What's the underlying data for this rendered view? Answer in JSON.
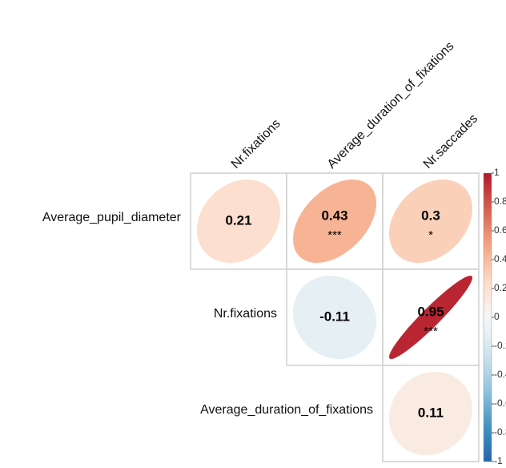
{
  "chart_data": {
    "type": "corrplot",
    "rows": [
      "Average_pupil_diameter",
      "Nr.fixations",
      "Average_duration_of_fixations"
    ],
    "columns": [
      "Nr.fixations",
      "Average_duration_of_fixations",
      "Nr.saccades"
    ],
    "values": [
      [
        0.21,
        0.43,
        0.3
      ],
      [
        null,
        -0.11,
        0.95
      ],
      [
        null,
        null,
        0.11
      ]
    ],
    "stars": [
      [
        null,
        "***",
        "*"
      ],
      [
        null,
        null,
        "***"
      ],
      [
        null,
        null,
        null
      ]
    ],
    "clim": [
      -1,
      1
    ],
    "cticks": [
      -1,
      -0.8,
      -0.6,
      -0.4,
      -0.2,
      0,
      0.2,
      0.4,
      0.6,
      0.8,
      1
    ],
    "colormap": [
      "#2166ac",
      "#4393c3",
      "#92c5de",
      "#d1e5f0",
      "#f7f7f7",
      "#fddbc7",
      "#f4a582",
      "#d6604d",
      "#b2182b"
    ]
  }
}
